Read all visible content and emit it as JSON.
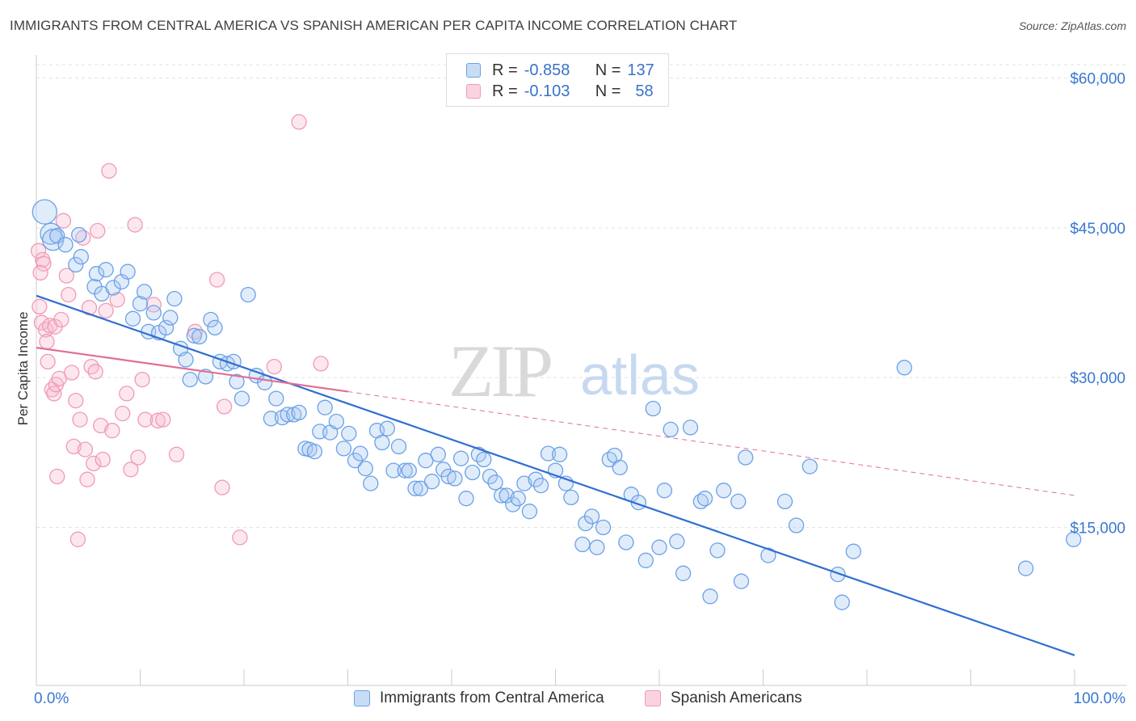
{
  "header": {
    "title": "IMMIGRANTS FROM CENTRAL AMERICA VS SPANISH AMERICAN PER CAPITA INCOME CORRELATION CHART",
    "source": "Source: ZipAtlas.com"
  },
  "watermark": {
    "zip": "ZIP",
    "atlas": "atlas"
  },
  "stats": [
    {
      "r_label": "R =",
      "r_value": "-0.858",
      "n_label": "N =",
      "n_value": "137",
      "color": "#6aa1e8"
    },
    {
      "r_label": "R =",
      "r_value": "-0.103",
      "n_label": "N =",
      "n_value": "58",
      "color": "#f09ab6"
    }
  ],
  "legend": [
    {
      "label": "Immigrants from Central America",
      "color": "#6aa1e8"
    },
    {
      "label": "Spanish Americans",
      "color": "#f09ab6"
    }
  ],
  "chart_data": {
    "type": "scatter",
    "title": "IMMIGRANTS FROM CENTRAL AMERICA VS SPANISH AMERICAN PER CAPITA INCOME CORRELATION CHART",
    "xlabel": "",
    "ylabel": "Per Capita Income",
    "xlim": [
      0,
      100
    ],
    "ylim": [
      0,
      63000
    ],
    "x_tick_labels": [
      "0.0%",
      "100.0%"
    ],
    "y_ticks": [
      15000,
      30000,
      45000,
      60000
    ],
    "y_tick_labels": [
      "$15,000",
      "$30,000",
      "$45,000",
      "$60,000"
    ],
    "grid": true,
    "legend_position": "bottom",
    "series": [
      {
        "name": "Immigrants from Central America",
        "color": "#6aa1e8",
        "line_color": "#2f6fd0",
        "trend": {
          "x1": 0,
          "y1": 38200,
          "x2": 100,
          "y2": 2200,
          "style": "solid"
        },
        "points": [
          [
            0.8,
            46600
          ],
          [
            1.4,
            44400
          ],
          [
            1.6,
            43800
          ],
          [
            2.0,
            44200
          ],
          [
            2.8,
            43300
          ],
          [
            4.1,
            44300
          ],
          [
            3.8,
            41300
          ],
          [
            4.3,
            42100
          ],
          [
            5.6,
            39100
          ],
          [
            5.8,
            40400
          ],
          [
            6.3,
            38400
          ],
          [
            6.7,
            40800
          ],
          [
            7.4,
            39000
          ],
          [
            8.2,
            39600
          ],
          [
            8.8,
            40600
          ],
          [
            9.3,
            35900
          ],
          [
            10.0,
            37400
          ],
          [
            10.4,
            38600
          ],
          [
            10.8,
            34600
          ],
          [
            11.3,
            36500
          ],
          [
            11.8,
            34500
          ],
          [
            12.5,
            35000
          ],
          [
            12.9,
            36000
          ],
          [
            13.3,
            37900
          ],
          [
            13.9,
            32900
          ],
          [
            14.4,
            31800
          ],
          [
            14.8,
            29800
          ],
          [
            15.2,
            34200
          ],
          [
            15.7,
            34100
          ],
          [
            16.3,
            30100
          ],
          [
            16.8,
            35800
          ],
          [
            17.2,
            35000
          ],
          [
            17.7,
            31600
          ],
          [
            18.4,
            31400
          ],
          [
            19.0,
            31600
          ],
          [
            19.3,
            29600
          ],
          [
            19.8,
            27900
          ],
          [
            20.4,
            38300
          ],
          [
            21.2,
            30200
          ],
          [
            22.0,
            29500
          ],
          [
            22.6,
            25900
          ],
          [
            23.1,
            27900
          ],
          [
            23.7,
            26000
          ],
          [
            24.2,
            26300
          ],
          [
            24.8,
            26300
          ],
          [
            25.3,
            26500
          ],
          [
            25.9,
            22900
          ],
          [
            26.3,
            22800
          ],
          [
            26.8,
            22600
          ],
          [
            27.3,
            24600
          ],
          [
            27.8,
            27000
          ],
          [
            28.3,
            24500
          ],
          [
            28.9,
            25600
          ],
          [
            29.6,
            22900
          ],
          [
            30.1,
            24400
          ],
          [
            30.7,
            21700
          ],
          [
            31.2,
            22400
          ],
          [
            31.7,
            20900
          ],
          [
            32.2,
            19400
          ],
          [
            32.8,
            24700
          ],
          [
            33.3,
            23500
          ],
          [
            33.8,
            24900
          ],
          [
            34.4,
            20700
          ],
          [
            34.9,
            23100
          ],
          [
            35.5,
            20700
          ],
          [
            35.9,
            20700
          ],
          [
            36.5,
            18900
          ],
          [
            37.0,
            18900
          ],
          [
            37.5,
            21700
          ],
          [
            38.1,
            19600
          ],
          [
            38.7,
            22300
          ],
          [
            39.2,
            20800
          ],
          [
            39.7,
            20100
          ],
          [
            40.3,
            19900
          ],
          [
            40.9,
            21900
          ],
          [
            41.4,
            17900
          ],
          [
            42.0,
            20500
          ],
          [
            42.6,
            22300
          ],
          [
            43.1,
            21800
          ],
          [
            43.7,
            20100
          ],
          [
            44.2,
            19500
          ],
          [
            44.8,
            18200
          ],
          [
            45.3,
            18200
          ],
          [
            45.9,
            17300
          ],
          [
            46.4,
            17900
          ],
          [
            47.0,
            19400
          ],
          [
            47.5,
            16600
          ],
          [
            48.1,
            19800
          ],
          [
            48.6,
            19200
          ],
          [
            49.3,
            22400
          ],
          [
            50.0,
            20700
          ],
          [
            50.4,
            22300
          ],
          [
            51.0,
            19400
          ],
          [
            51.5,
            18000
          ],
          [
            52.6,
            13300
          ],
          [
            52.9,
            15400
          ],
          [
            53.5,
            16100
          ],
          [
            54.0,
            13000
          ],
          [
            54.6,
            15000
          ],
          [
            55.2,
            21800
          ],
          [
            55.7,
            22200
          ],
          [
            56.2,
            21000
          ],
          [
            56.8,
            13500
          ],
          [
            57.3,
            18300
          ],
          [
            58.0,
            17500
          ],
          [
            58.7,
            11700
          ],
          [
            59.4,
            26900
          ],
          [
            60.0,
            13000
          ],
          [
            60.5,
            18700
          ],
          [
            61.1,
            24800
          ],
          [
            61.7,
            13600
          ],
          [
            62.3,
            10400
          ],
          [
            63.0,
            25000
          ],
          [
            64.0,
            17600
          ],
          [
            64.4,
            17900
          ],
          [
            64.9,
            8100
          ],
          [
            65.6,
            12700
          ],
          [
            66.2,
            18700
          ],
          [
            67.6,
            17600
          ],
          [
            67.9,
            9600
          ],
          [
            68.3,
            22000
          ],
          [
            70.5,
            12200
          ],
          [
            72.1,
            17600
          ],
          [
            73.2,
            15200
          ],
          [
            74.5,
            21100
          ],
          [
            77.2,
            10300
          ],
          [
            77.6,
            7500
          ],
          [
            78.7,
            12600
          ],
          [
            83.6,
            31000
          ],
          [
            95.3,
            10900
          ],
          [
            99.9,
            13800
          ]
        ]
      },
      {
        "name": "Spanish Americans",
        "color": "#f09ab6",
        "line_color": "#e06f96",
        "trend": {
          "x1": 0,
          "y1": 33000,
          "x2": 30,
          "y2": 28600,
          "dash_to_x": 100,
          "dash_to_y": 18200,
          "style": "solid-then-dashed"
        },
        "points": [
          [
            0.2,
            42700
          ],
          [
            0.3,
            37100
          ],
          [
            0.5,
            35500
          ],
          [
            0.6,
            41800
          ],
          [
            0.7,
            41400
          ],
          [
            0.9,
            34800
          ],
          [
            1.0,
            33600
          ],
          [
            1.1,
            31600
          ],
          [
            1.3,
            35200
          ],
          [
            1.5,
            28800
          ],
          [
            1.7,
            28400
          ],
          [
            1.8,
            35100
          ],
          [
            1.9,
            29300
          ],
          [
            2.0,
            20100
          ],
          [
            2.2,
            29900
          ],
          [
            2.4,
            35800
          ],
          [
            2.6,
            45700
          ],
          [
            2.9,
            40200
          ],
          [
            3.1,
            38300
          ],
          [
            3.4,
            30500
          ],
          [
            3.6,
            23100
          ],
          [
            3.8,
            27700
          ],
          [
            4.0,
            13800
          ],
          [
            4.2,
            25800
          ],
          [
            4.5,
            44000
          ],
          [
            4.7,
            22800
          ],
          [
            4.9,
            19800
          ],
          [
            5.1,
            37000
          ],
          [
            5.3,
            31100
          ],
          [
            5.5,
            21400
          ],
          [
            5.7,
            30600
          ],
          [
            5.9,
            44700
          ],
          [
            6.2,
            25200
          ],
          [
            6.4,
            21800
          ],
          [
            6.7,
            36700
          ],
          [
            7.0,
            50700
          ],
          [
            7.3,
            24700
          ],
          [
            7.8,
            37800
          ],
          [
            8.3,
            26400
          ],
          [
            8.7,
            28400
          ],
          [
            9.1,
            20800
          ],
          [
            9.5,
            45300
          ],
          [
            9.8,
            22000
          ],
          [
            10.2,
            29800
          ],
          [
            10.5,
            25800
          ],
          [
            11.3,
            37300
          ],
          [
            11.7,
            25700
          ],
          [
            12.2,
            25800
          ],
          [
            13.5,
            22300
          ],
          [
            15.3,
            34600
          ],
          [
            17.4,
            39800
          ],
          [
            17.9,
            19000
          ],
          [
            18.1,
            27100
          ],
          [
            19.6,
            14000
          ],
          [
            22.9,
            31100
          ],
          [
            25.3,
            55600
          ],
          [
            27.4,
            31400
          ],
          [
            0.4,
            40500
          ]
        ]
      }
    ]
  }
}
